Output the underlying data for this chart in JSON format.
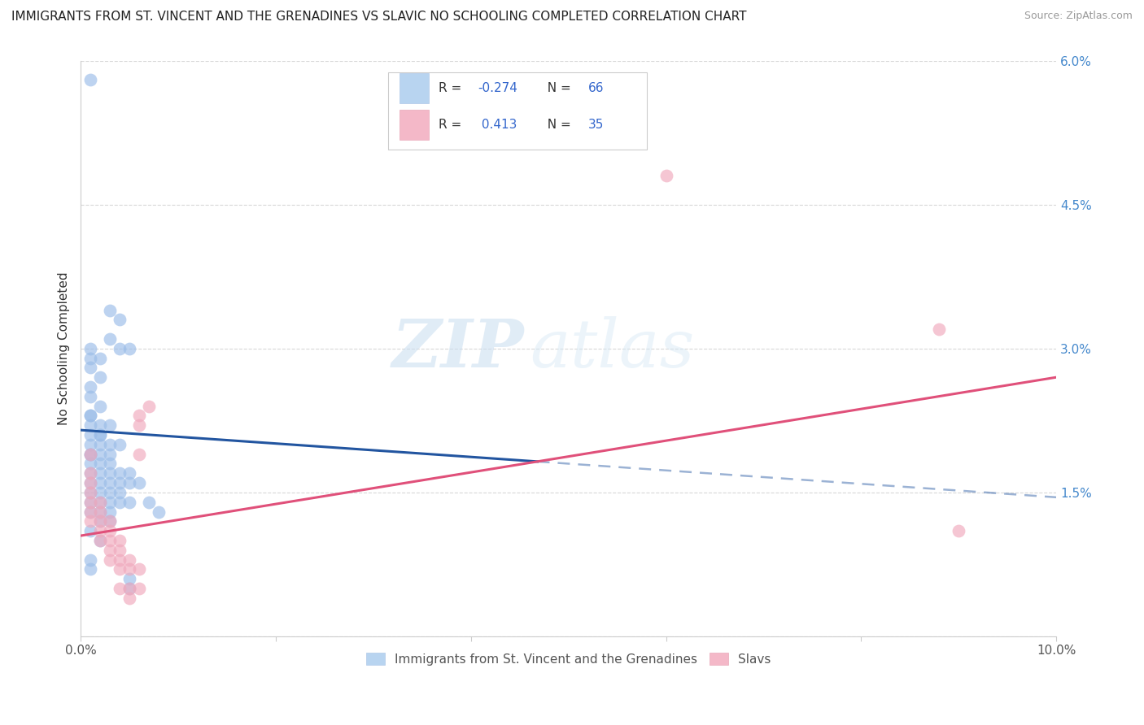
{
  "title": "IMMIGRANTS FROM ST. VINCENT AND THE GRENADINES VS SLAVIC NO SCHOOLING COMPLETED CORRELATION CHART",
  "source": "Source: ZipAtlas.com",
  "ylabel": "No Schooling Completed",
  "xlim": [
    0.0,
    0.1
  ],
  "ylim": [
    0.0,
    0.06
  ],
  "xticks": [
    0.0,
    0.02,
    0.04,
    0.06,
    0.08,
    0.1
  ],
  "yticks": [
    0.0,
    0.015,
    0.03,
    0.045,
    0.06
  ],
  "blue_scatter": [
    [
      0.001,
      0.058
    ],
    [
      0.003,
      0.034
    ],
    [
      0.004,
      0.033
    ],
    [
      0.003,
      0.031
    ],
    [
      0.001,
      0.03
    ],
    [
      0.002,
      0.029
    ],
    [
      0.001,
      0.029
    ],
    [
      0.001,
      0.028
    ],
    [
      0.002,
      0.027
    ],
    [
      0.001,
      0.026
    ],
    [
      0.004,
      0.03
    ],
    [
      0.005,
      0.03
    ],
    [
      0.001,
      0.025
    ],
    [
      0.002,
      0.024
    ],
    [
      0.001,
      0.023
    ],
    [
      0.001,
      0.023
    ],
    [
      0.002,
      0.022
    ],
    [
      0.003,
      0.022
    ],
    [
      0.001,
      0.022
    ],
    [
      0.002,
      0.021
    ],
    [
      0.001,
      0.021
    ],
    [
      0.002,
      0.021
    ],
    [
      0.001,
      0.02
    ],
    [
      0.002,
      0.02
    ],
    [
      0.003,
      0.02
    ],
    [
      0.004,
      0.02
    ],
    [
      0.001,
      0.019
    ],
    [
      0.002,
      0.019
    ],
    [
      0.001,
      0.019
    ],
    [
      0.003,
      0.019
    ],
    [
      0.001,
      0.018
    ],
    [
      0.002,
      0.018
    ],
    [
      0.003,
      0.018
    ],
    [
      0.001,
      0.017
    ],
    [
      0.002,
      0.017
    ],
    [
      0.003,
      0.017
    ],
    [
      0.004,
      0.017
    ],
    [
      0.005,
      0.017
    ],
    [
      0.001,
      0.016
    ],
    [
      0.002,
      0.016
    ],
    [
      0.003,
      0.016
    ],
    [
      0.004,
      0.016
    ],
    [
      0.005,
      0.016
    ],
    [
      0.006,
      0.016
    ],
    [
      0.001,
      0.015
    ],
    [
      0.002,
      0.015
    ],
    [
      0.003,
      0.015
    ],
    [
      0.004,
      0.015
    ],
    [
      0.001,
      0.014
    ],
    [
      0.002,
      0.014
    ],
    [
      0.003,
      0.014
    ],
    [
      0.004,
      0.014
    ],
    [
      0.005,
      0.014
    ],
    [
      0.001,
      0.013
    ],
    [
      0.002,
      0.013
    ],
    [
      0.003,
      0.013
    ],
    [
      0.002,
      0.012
    ],
    [
      0.003,
      0.012
    ],
    [
      0.001,
      0.011
    ],
    [
      0.002,
      0.01
    ],
    [
      0.001,
      0.008
    ],
    [
      0.001,
      0.007
    ],
    [
      0.005,
      0.006
    ],
    [
      0.005,
      0.005
    ],
    [
      0.007,
      0.014
    ],
    [
      0.008,
      0.013
    ]
  ],
  "pink_scatter": [
    [
      0.001,
      0.019
    ],
    [
      0.001,
      0.017
    ],
    [
      0.001,
      0.016
    ],
    [
      0.001,
      0.015
    ],
    [
      0.001,
      0.014
    ],
    [
      0.002,
      0.014
    ],
    [
      0.001,
      0.013
    ],
    [
      0.002,
      0.013
    ],
    [
      0.001,
      0.012
    ],
    [
      0.002,
      0.012
    ],
    [
      0.003,
      0.012
    ],
    [
      0.002,
      0.011
    ],
    [
      0.003,
      0.011
    ],
    [
      0.002,
      0.01
    ],
    [
      0.003,
      0.01
    ],
    [
      0.004,
      0.01
    ],
    [
      0.003,
      0.009
    ],
    [
      0.004,
      0.009
    ],
    [
      0.003,
      0.008
    ],
    [
      0.004,
      0.008
    ],
    [
      0.005,
      0.008
    ],
    [
      0.004,
      0.007
    ],
    [
      0.005,
      0.007
    ],
    [
      0.006,
      0.007
    ],
    [
      0.004,
      0.005
    ],
    [
      0.005,
      0.005
    ],
    [
      0.006,
      0.005
    ],
    [
      0.005,
      0.004
    ],
    [
      0.006,
      0.023
    ],
    [
      0.006,
      0.022
    ],
    [
      0.006,
      0.019
    ],
    [
      0.007,
      0.024
    ],
    [
      0.06,
      0.048
    ],
    [
      0.088,
      0.032
    ],
    [
      0.09,
      0.011
    ]
  ],
  "blue_line": {
    "x_start": 0.0,
    "x_end": 0.1,
    "y_start": 0.0215,
    "y_end": 0.0145
  },
  "pink_line": {
    "x_start": 0.0,
    "x_end": 0.1,
    "y_start": 0.0105,
    "y_end": 0.027
  },
  "blue_line_color": "#2255a0",
  "pink_line_color": "#e0507a",
  "blue_scatter_color": "#9abce8",
  "pink_scatter_color": "#f0a8bc",
  "watermark_zip": "ZIP",
  "watermark_atlas": "atlas",
  "background_color": "#ffffff",
  "grid_color": "#d8d8d8"
}
